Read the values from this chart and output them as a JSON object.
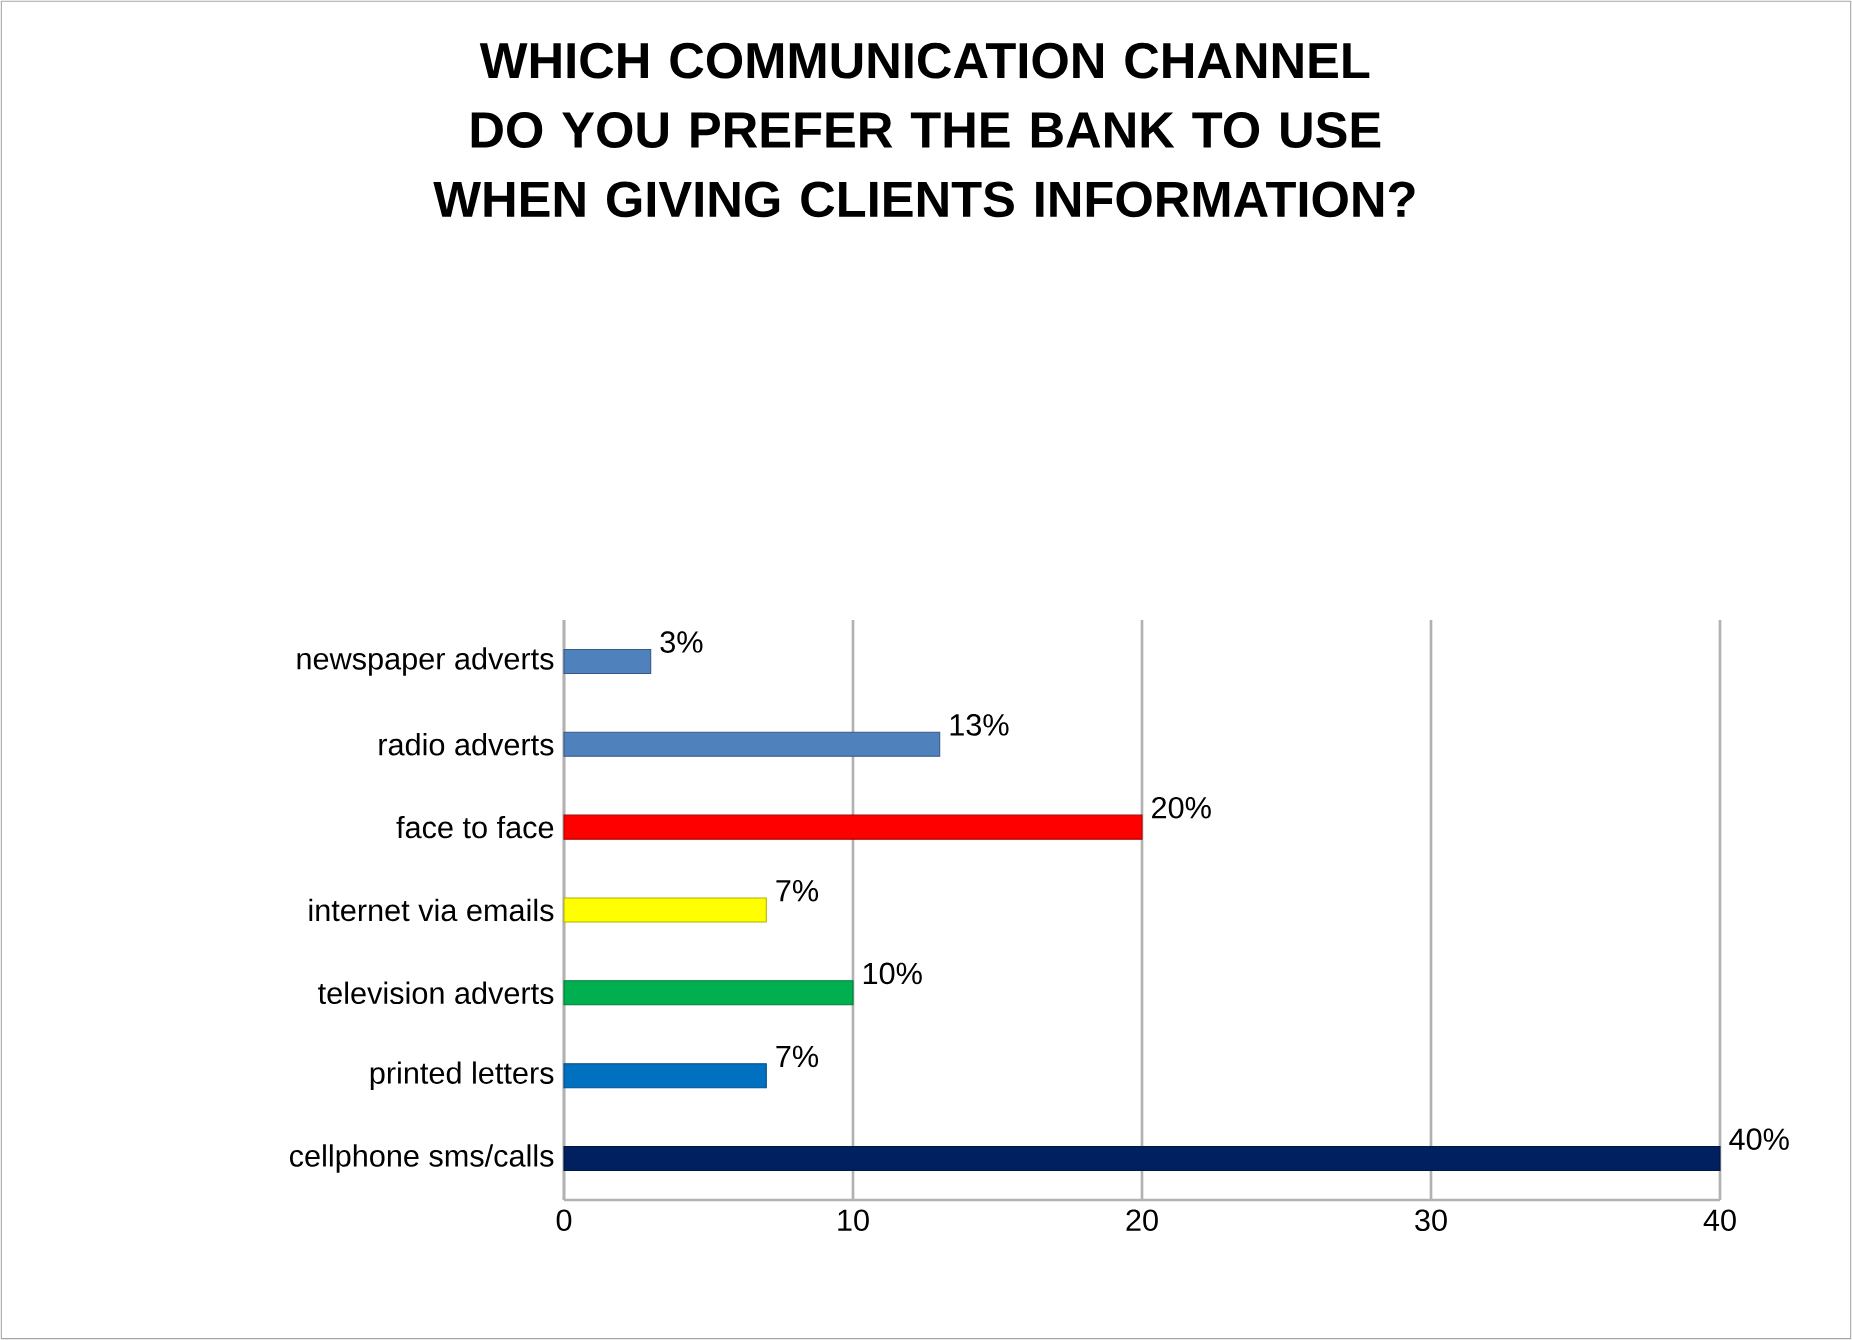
{
  "chart_data": {
    "type": "bar",
    "orientation": "horizontal",
    "title": "WHICH COMMUNICATION CHANNEL DO YOU PREFER THE BANK TO USE WHEN GIVING CLIENTS INFORMATION?",
    "categories": [
      "newspaper adverts",
      "radio adverts",
      "face to face",
      "internet via emails",
      "television adverts",
      "printed letters",
      "cellphone sms/calls"
    ],
    "values": [
      3,
      13,
      20,
      7,
      10,
      7,
      40
    ],
    "value_labels": [
      "3%",
      "13%",
      "20%",
      "7%",
      "10%",
      "7%",
      "40%"
    ],
    "colors": [
      "#4f81bd",
      "#4f81bd",
      "#ff0000",
      "#ffff00",
      "#00b050",
      "#0070c0",
      "#002060"
    ],
    "xlim": [
      0,
      40
    ],
    "xticks": [
      0,
      10,
      20,
      30,
      40
    ],
    "grid": "x"
  }
}
